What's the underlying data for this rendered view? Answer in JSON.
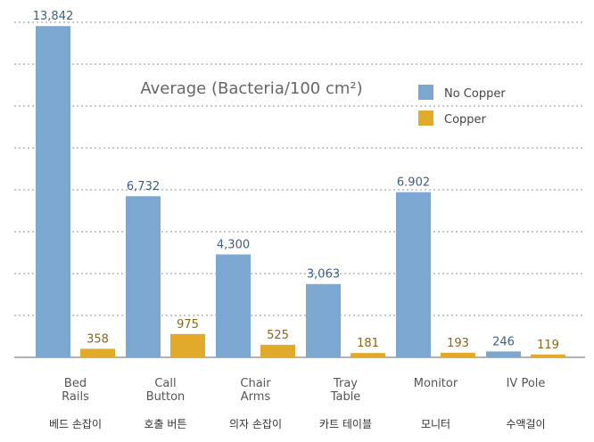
{
  "chart_data": {
    "type": "bar",
    "title": "Average (Bacteria/100 cm²)",
    "categories": [
      [
        "Bed",
        "Rails"
      ],
      [
        "Call",
        "Button"
      ],
      [
        "Chair",
        "Arms"
      ],
      [
        "Tray",
        "Table"
      ],
      [
        "Monitor"
      ],
      [
        "IV Pole"
      ]
    ],
    "categories_kr": [
      "베드 손잡이",
      "호출 버튼",
      "의자 손잡이",
      "카트 테이블",
      "모니터",
      "수액걸이"
    ],
    "series": [
      {
        "name": "No Copper",
        "color": "#7ba7d1",
        "label_color": "#3d5f82",
        "values": [
          13842,
          6732,
          4300,
          3063,
          6902,
          246
        ],
        "labels": [
          "13,842",
          "6,732",
          "4,300",
          "3,063",
          "6.902",
          "246"
        ]
      },
      {
        "name": "Copper",
        "color": "#e1aa2a",
        "label_color": "#8a6418",
        "values": [
          358,
          975,
          525,
          181,
          193,
          119
        ],
        "labels": [
          "358",
          "975",
          "525",
          "181",
          "193",
          "119"
        ]
      }
    ],
    "ylim": [
      0,
      14000
    ],
    "grid": true,
    "legend": "top-right",
    "xlabel": "",
    "ylabel": ""
  }
}
